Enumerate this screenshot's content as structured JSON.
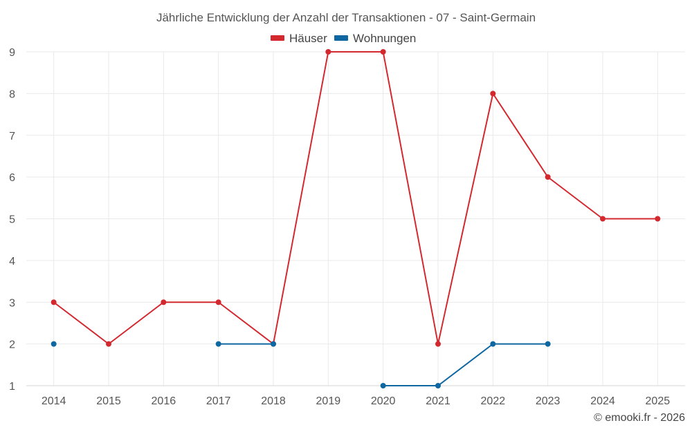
{
  "chart_data": {
    "type": "line",
    "title": "Jährliche Entwicklung der Anzahl der Transaktionen - 07 - Saint-Germain",
    "categories": [
      "2014",
      "2015",
      "2016",
      "2017",
      "2018",
      "2019",
      "2020",
      "2021",
      "2022",
      "2023",
      "2024",
      "2025"
    ],
    "ylim": [
      1,
      9
    ],
    "yticks": [
      "1",
      "2",
      "3",
      "4",
      "5",
      "6",
      "7",
      "8",
      "9"
    ],
    "grid": true,
    "legend_position": "top-center",
    "series": [
      {
        "name": "Häuser",
        "color": "#d3282d",
        "values": [
          3,
          2,
          3,
          3,
          2,
          9,
          9,
          2,
          8,
          6,
          5,
          5
        ]
      },
      {
        "name": "Wohnungen",
        "color": "#0e67a0",
        "values": [
          2,
          null,
          null,
          2,
          2,
          null,
          1,
          1,
          2,
          2,
          null,
          null
        ]
      }
    ]
  },
  "credit": "© emooki.fr - 2026"
}
